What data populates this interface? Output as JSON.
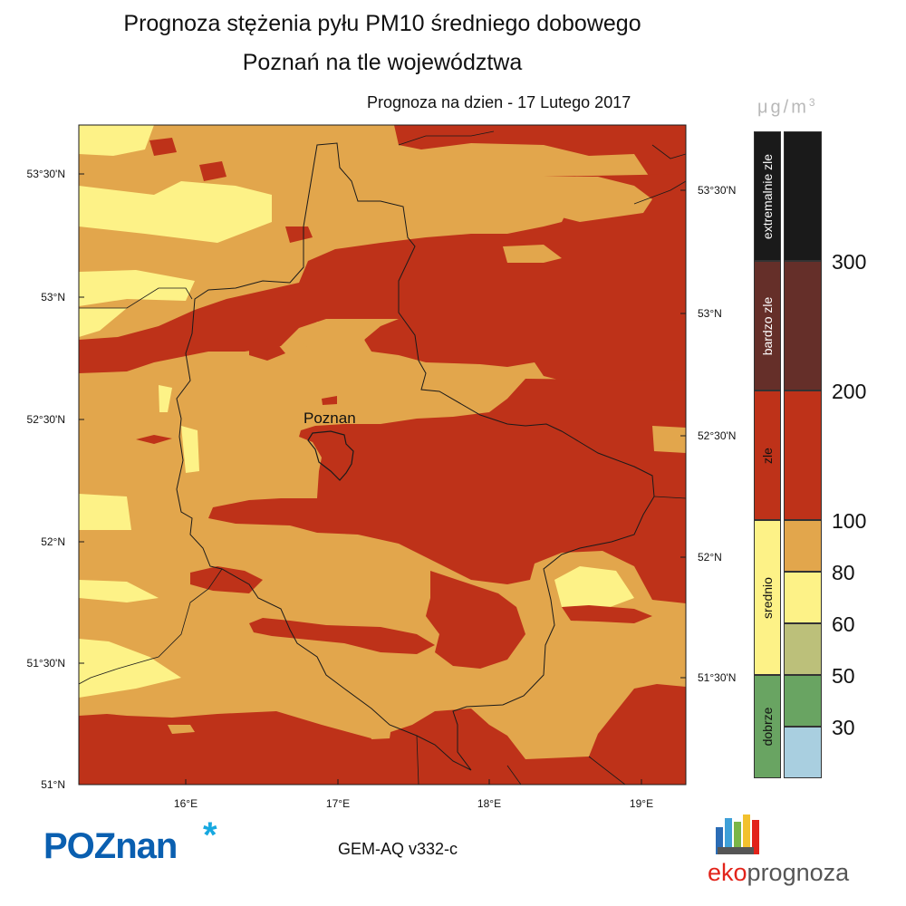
{
  "title_line1": "Prognoza stężenia pyłu PM10 średniego dobowego",
  "title_line2": "Poznań na tle województwa",
  "forecast_date": "Prognoza na dzien -  17 Lutego 2017",
  "unit": "μg/m",
  "unit_exp": "3",
  "city_label": "Poznan",
  "model_label": "GEM-AQ v332-c",
  "logo_left": "POZnan",
  "logo_left_star": "*",
  "logo_right_part1": "eko",
  "logo_right_part2": "prognoza",
  "lat_labels_left": [
    "53°30'N",
    "53°N",
    "52°30'N",
    "52°N",
    "51°30'N",
    "51°N"
  ],
  "lat_labels_right": [
    "53°30'N",
    "53°N",
    "52°30'N",
    "52°N",
    "51°30'N"
  ],
  "lon_labels": [
    "16°E",
    "17°E",
    "18°E",
    "19°E"
  ],
  "legend_categories": [
    "extremalnie zle",
    "bardzo zle",
    "zle",
    "srednio",
    "dobrze"
  ],
  "legend_ticks": [
    "300",
    "200",
    "100",
    "80",
    "60",
    "50",
    "30"
  ],
  "colors": {
    "c30": "#a9cfe0",
    "c50": "#69a462",
    "c60": "#bcc07a",
    "c80": "#fdf287",
    "c100": "#e2a64c",
    "c200": "#be3219",
    "c300": "#652f29",
    "cmax": "#1a1a1a",
    "cat_extreme": "#1a1a1a",
    "cat_bardzo": "#652f29",
    "cat_zle": "#be3219",
    "cat_srednio": "#fdf287",
    "cat_dobrze": "#69a462"
  }
}
